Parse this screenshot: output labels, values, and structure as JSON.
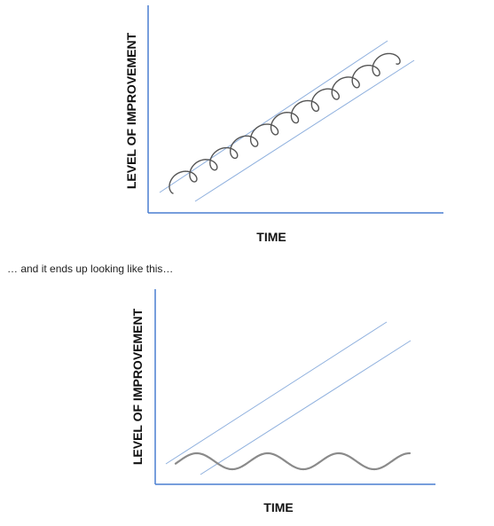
{
  "caption": "… and it ends up looking like this…",
  "colors": {
    "axis": "#4a7fd0",
    "guide": "#8fb0de",
    "curve": "#555555",
    "wave": "#8a8a8a"
  },
  "figures": [
    {
      "id": "top",
      "xlabel": "TIME",
      "ylabel": "LEVEL OF IMPROVEMENT",
      "curve": "spiral-loops"
    },
    {
      "id": "bottom",
      "xlabel": "TIME",
      "ylabel": "LEVEL OF IMPROVEMENT",
      "curve": "flat-wave"
    }
  ]
}
